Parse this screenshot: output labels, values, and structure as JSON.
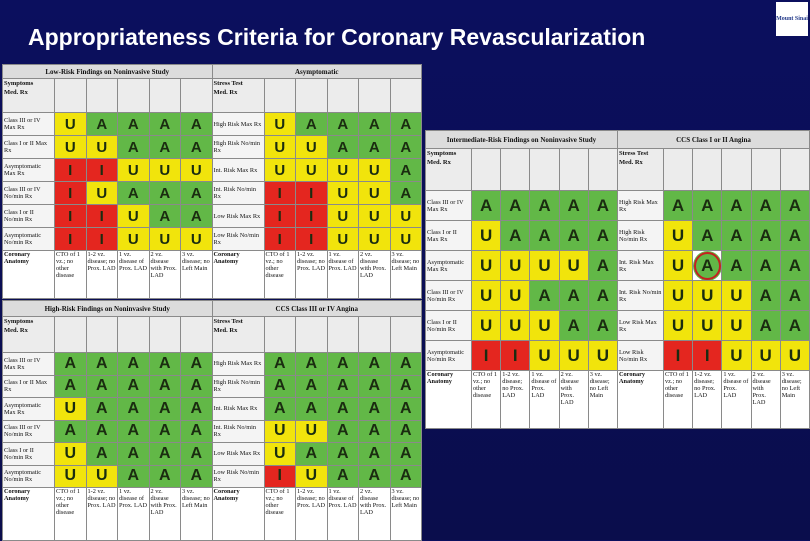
{
  "title": "Appropriateness Criteria for Coronary Revascularization",
  "logo": "Mount Sinai",
  "anatomy_label": "Coronary Anatomy",
  "anatomy_columns": [
    "CTO of 1 vz.; no other disease",
    "1-2 vz. disease; no Prox. LAD",
    "1 vz. disease of Prox. LAD",
    "2 vz. disease with Prox. LAD",
    "3 vz. disease; no Left Main"
  ],
  "rating_colors": {
    "A": "#62b847",
    "U": "#f1e40c",
    "I": "#e4261f"
  },
  "tables": [
    {
      "left_title": "Low-Risk Findings on Noninvasive Study",
      "right_title": "Asymptomatic",
      "left_header": [
        "Symptoms",
        "Med. Rx"
      ],
      "right_header": [
        "Stress Test",
        "Med. Rx"
      ],
      "left_rows": [
        {
          "label": "Class III or IV Max Rx",
          "cells": [
            "U",
            "A",
            "A",
            "A",
            "A"
          ]
        },
        {
          "label": "Class I or II Max Rx",
          "cells": [
            "U",
            "U",
            "A",
            "A",
            "A"
          ]
        },
        {
          "label": "Asymptomatic Max Rx",
          "cells": [
            "I",
            "I",
            "U",
            "U",
            "U"
          ]
        },
        {
          "label": "Class III or IV No/min Rx",
          "cells": [
            "I",
            "U",
            "A",
            "A",
            "A"
          ]
        },
        {
          "label": "Class I or II No/min Rx",
          "cells": [
            "I",
            "I",
            "U",
            "A",
            "A"
          ]
        },
        {
          "label": "Asymptomatic No/min Rx",
          "cells": [
            "I",
            "I",
            "U",
            "U",
            "U"
          ]
        }
      ],
      "right_rows": [
        {
          "label": "High Risk Max Rx",
          "cells": [
            "U",
            "A",
            "A",
            "A",
            "A"
          ]
        },
        {
          "label": "High Risk No/min Rx",
          "cells": [
            "U",
            "U",
            "A",
            "A",
            "A"
          ]
        },
        {
          "label": "Int. Risk Max Rx",
          "cells": [
            "U",
            "U",
            "U",
            "U",
            "A"
          ]
        },
        {
          "label": "Int. Risk No/min Rx",
          "cells": [
            "I",
            "I",
            "U",
            "U",
            "A"
          ]
        },
        {
          "label": "Low Risk Max Rx",
          "cells": [
            "I",
            "I",
            "U",
            "U",
            "U"
          ]
        },
        {
          "label": "Low Risk No/min Rx",
          "cells": [
            "I",
            "I",
            "U",
            "U",
            "U"
          ]
        }
      ]
    },
    {
      "left_title": "High-Risk Findings on Noninvasive Study",
      "right_title": "CCS Class III or IV Angina",
      "left_header": [
        "Symptoms",
        "Med. Rx"
      ],
      "right_header": [
        "Stress Test",
        "Med. Rx"
      ],
      "left_rows": [
        {
          "label": "Class III or IV Max Rx",
          "cells": [
            "A",
            "A",
            "A",
            "A",
            "A"
          ]
        },
        {
          "label": "Class I or II Max Rx",
          "cells": [
            "A",
            "A",
            "A",
            "A",
            "A"
          ]
        },
        {
          "label": "Asymptomatic Max Rx",
          "cells": [
            "U",
            "A",
            "A",
            "A",
            "A"
          ]
        },
        {
          "label": "Class III or IV No/min Rx",
          "cells": [
            "A",
            "A",
            "A",
            "A",
            "A"
          ]
        },
        {
          "label": "Class I or II No/min Rx",
          "cells": [
            "U",
            "A",
            "A",
            "A",
            "A"
          ]
        },
        {
          "label": "Asymptomatic No/min Rx",
          "cells": [
            "U",
            "U",
            "A",
            "A",
            "A"
          ]
        }
      ],
      "right_rows": [
        {
          "label": "High Risk Max Rx",
          "cells": [
            "A",
            "A",
            "A",
            "A",
            "A"
          ]
        },
        {
          "label": "High Risk No/min Rx",
          "cells": [
            "A",
            "A",
            "A",
            "A",
            "A"
          ]
        },
        {
          "label": "Int. Risk Max Rx",
          "cells": [
            "A",
            "A",
            "A",
            "A",
            "A"
          ]
        },
        {
          "label": "Int. Risk No/min Rx",
          "cells": [
            "U",
            "U",
            "A",
            "A",
            "A"
          ]
        },
        {
          "label": "Low Risk Max Rx",
          "cells": [
            "U",
            "A",
            "A",
            "A",
            "A"
          ]
        },
        {
          "label": "Low Risk No/min Rx",
          "cells": [
            "I",
            "U",
            "A",
            "A",
            "A"
          ]
        }
      ]
    },
    {
      "left_title": "Intermediate-Risk Findings on Noninvasive Study",
      "right_title": "CCS Class I or II Angina",
      "left_header": [
        "Symptoms",
        "Med. Rx"
      ],
      "right_header": [
        "Stress Test",
        "Med. Rx"
      ],
      "left_rows": [
        {
          "label": "Class III or IV Max Rx",
          "cells": [
            "A",
            "A",
            "A",
            "A",
            "A"
          ]
        },
        {
          "label": "Class I or II Max Rx",
          "cells": [
            "U",
            "A",
            "A",
            "A",
            "A"
          ]
        },
        {
          "label": "Asymptomatic Max Rx",
          "cells": [
            "U",
            "U",
            "U",
            "U",
            "A"
          ]
        },
        {
          "label": "Class III or IV No/min Rx",
          "cells": [
            "U",
            "U",
            "A",
            "A",
            "A"
          ]
        },
        {
          "label": "Class I or II No/min Rx",
          "cells": [
            "U",
            "U",
            "U",
            "A",
            "A"
          ]
        },
        {
          "label": "Asymptomatic No/min Rx",
          "cells": [
            "I",
            "I",
            "U",
            "U",
            "U"
          ]
        }
      ],
      "right_rows": [
        {
          "label": "High Risk Max Rx",
          "cells": [
            "A",
            "A",
            "A",
            "A",
            "A"
          ]
        },
        {
          "label": "High Risk No/min Rx",
          "cells": [
            "U",
            "A",
            "A",
            "A",
            "A"
          ]
        },
        {
          "label": "Int. Risk Max Rx",
          "cells": [
            "U",
            "A",
            "A",
            "A",
            "A"
          ]
        },
        {
          "label": "Int. Risk No/min Rx",
          "cells": [
            "U",
            "U",
            "U",
            "A",
            "A"
          ]
        },
        {
          "label": "Low Risk Max Rx",
          "cells": [
            "U",
            "U",
            "U",
            "A",
            "A"
          ]
        },
        {
          "label": "Low Risk No/min Rx",
          "cells": [
            "I",
            "I",
            "U",
            "U",
            "U"
          ]
        }
      ]
    }
  ]
}
